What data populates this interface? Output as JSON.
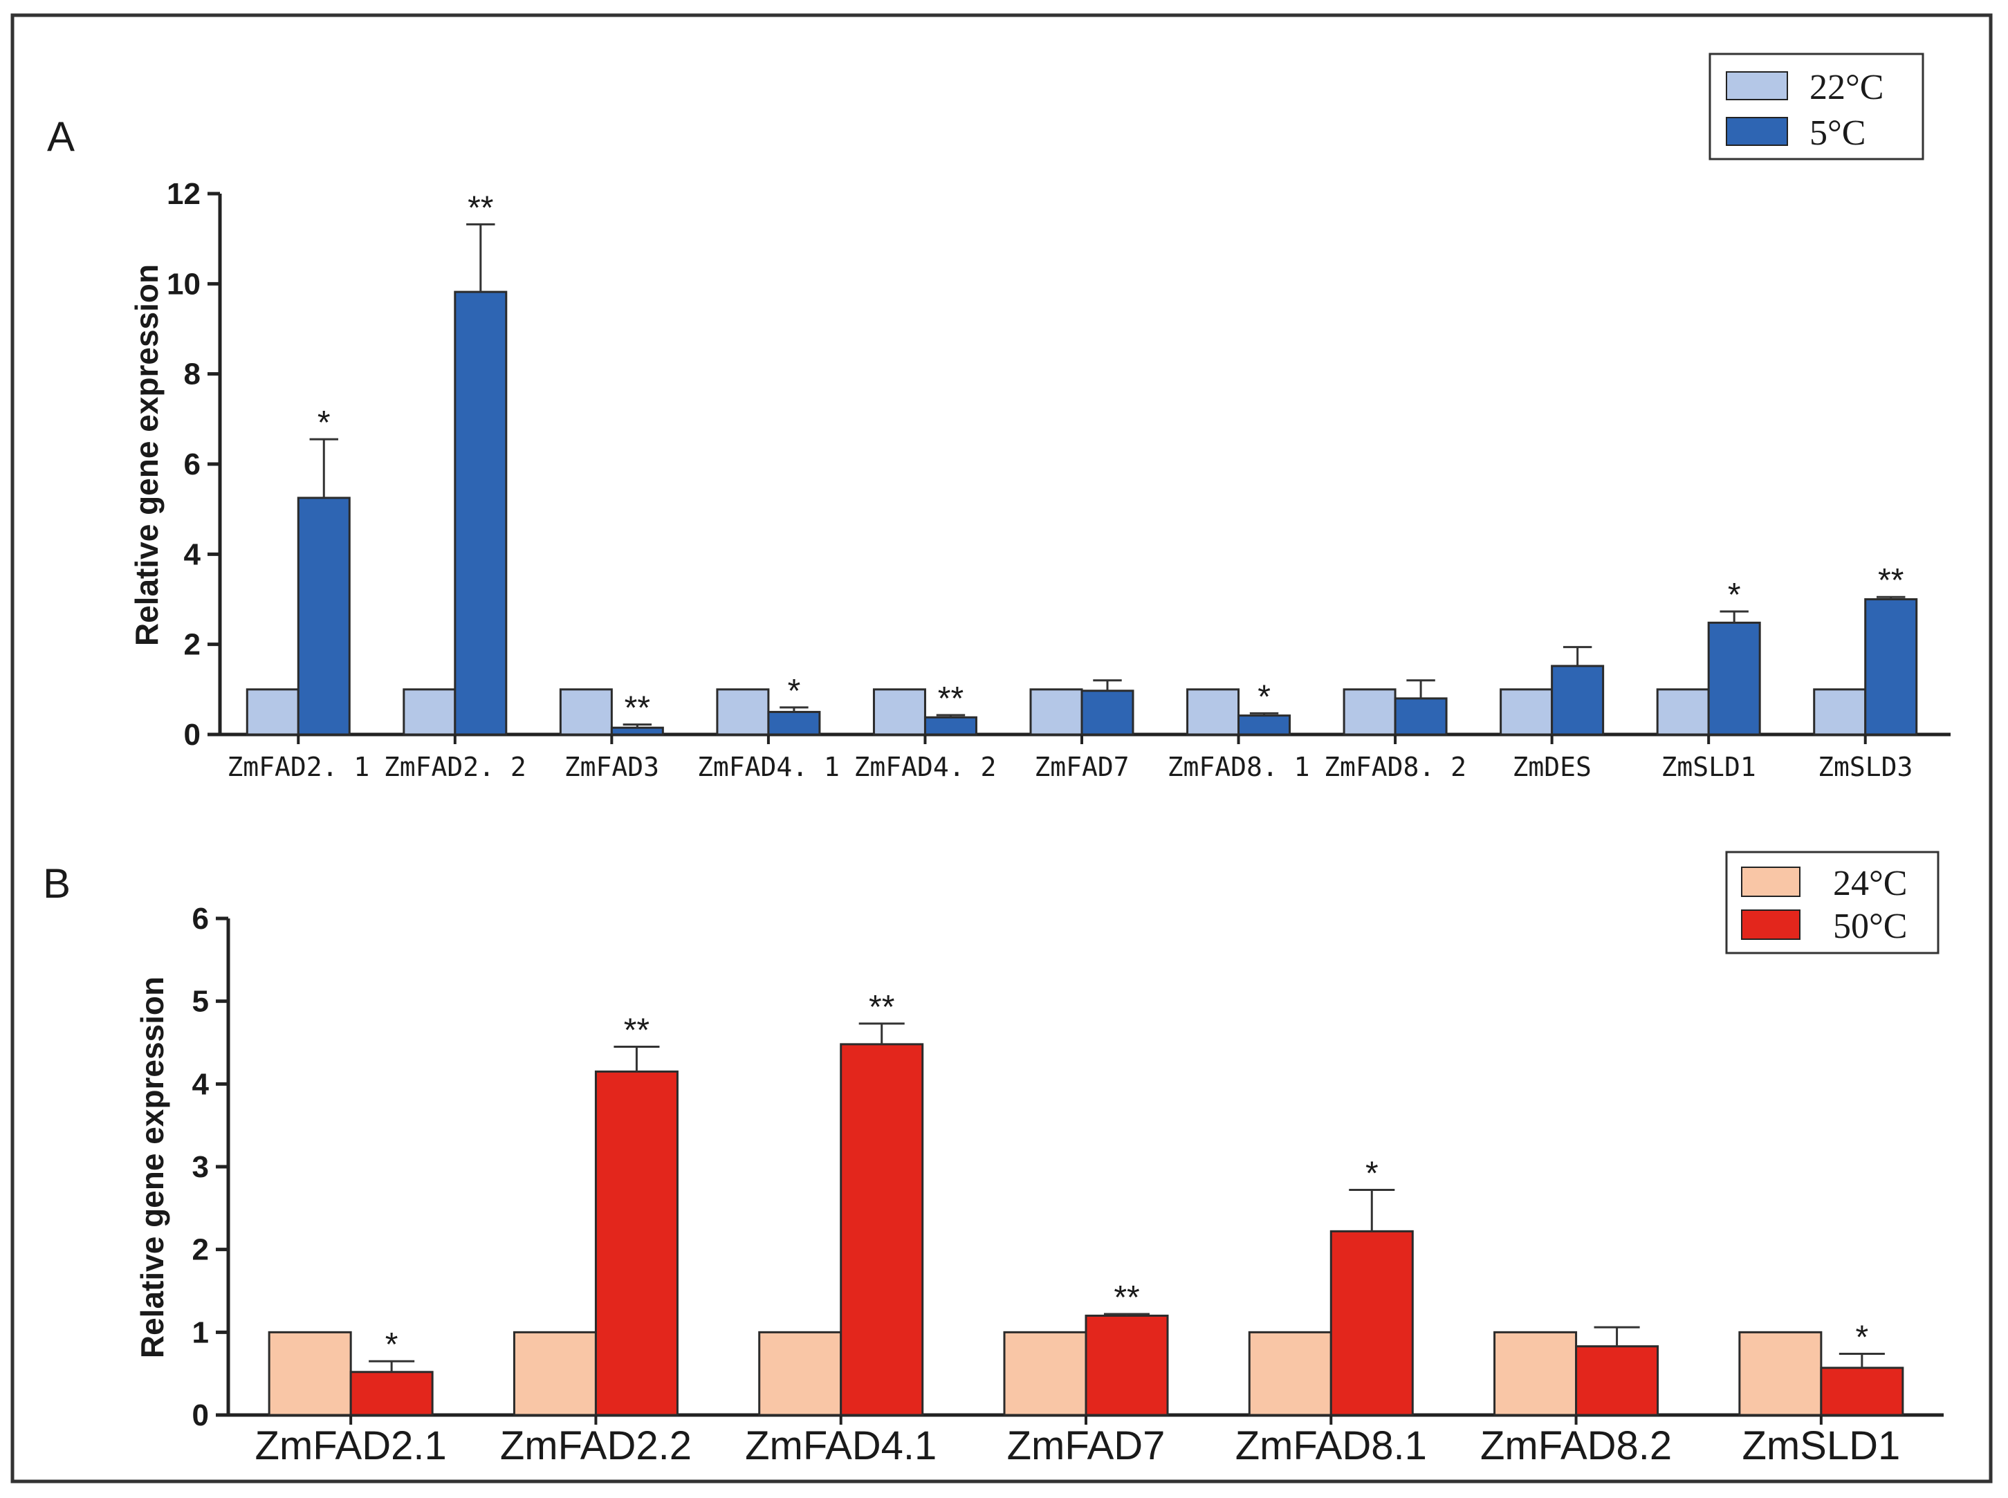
{
  "chart_data": [
    {
      "panel": "A",
      "type": "bar",
      "ylabel": "Relative gene expression",
      "ylim": [
        0,
        12
      ],
      "yticks": [
        0,
        2,
        4,
        6,
        8,
        10,
        12
      ],
      "categories": [
        "ZmFAD2. 1",
        "ZmFAD2. 2",
        "ZmFAD3",
        "ZmFAD4. 1",
        "ZmFAD4. 2",
        "ZmFAD7",
        "ZmFAD8. 1",
        "ZmFAD8. 2",
        "ZmDES",
        "ZmSLD1",
        "ZmSLD3"
      ],
      "legend_position": "top-right",
      "series": [
        {
          "name": "22°C",
          "color": "#b4c7e7",
          "values": [
            1,
            1,
            1,
            1,
            1,
            1,
            1,
            1,
            1,
            1,
            1
          ],
          "errors": [
            0,
            0,
            0,
            0,
            0,
            0,
            0,
            0,
            0,
            0,
            0
          ]
        },
        {
          "name": "5°C",
          "color": "#2e65b3",
          "values": [
            5.25,
            9.82,
            0.15,
            0.5,
            0.38,
            0.97,
            0.42,
            0.8,
            1.52,
            2.48,
            3.0
          ],
          "errors": [
            1.3,
            1.5,
            0.07,
            0.1,
            0.05,
            0.23,
            0.05,
            0.4,
            0.42,
            0.25,
            0.05
          ]
        }
      ],
      "significance": [
        "*",
        "**",
        "**",
        "*",
        "**",
        "",
        "*",
        "",
        "",
        "*",
        "**"
      ]
    },
    {
      "panel": "B",
      "type": "bar",
      "ylabel": "Relative gene expression",
      "ylim": [
        0,
        6
      ],
      "yticks": [
        0,
        1,
        2,
        3,
        4,
        5,
        6
      ],
      "categories": [
        "ZmFAD2.1",
        "ZmFAD2.2",
        "ZmFAD4.1",
        "ZmFAD7",
        "ZmFAD8.1",
        "ZmFAD8.2",
        "ZmSLD1"
      ],
      "legend_position": "top-right",
      "series": [
        {
          "name": "24°C",
          "color": "#f9c6a6",
          "values": [
            1,
            1,
            1,
            1,
            1,
            1,
            1
          ],
          "errors": [
            0,
            0,
            0,
            0,
            0,
            0,
            0
          ]
        },
        {
          "name": "50°C",
          "color": "#e3261c",
          "values": [
            0.52,
            4.15,
            4.48,
            1.2,
            2.22,
            0.83,
            0.57
          ],
          "errors": [
            0.13,
            0.3,
            0.25,
            0.02,
            0.5,
            0.23,
            0.17
          ]
        }
      ],
      "significance": [
        "*",
        "**",
        "**",
        "**",
        "*",
        "",
        "*"
      ]
    }
  ]
}
